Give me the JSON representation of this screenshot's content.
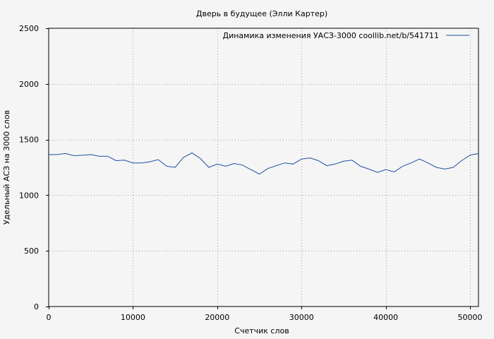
{
  "chart_data": {
    "type": "line",
    "title": "Дверь в будущее (Элли Картер)",
    "xlabel": "Счетчик слов",
    "ylabel": "Удельный АСЗ на 3000 слов",
    "xlim": [
      0,
      51000
    ],
    "ylim": [
      0,
      2500
    ],
    "xticks": [
      0,
      10000,
      20000,
      30000,
      40000,
      50000
    ],
    "yticks": [
      0,
      500,
      1000,
      1500,
      2000,
      2500
    ],
    "grid": true,
    "legend_position": "top-right",
    "series": [
      {
        "name": "Динамика изменения УАСЗ-3000  coollib.net/b/541711",
        "color": "#1f4fa0",
        "x": [
          0,
          1000,
          2000,
          3000,
          4000,
          5000,
          6000,
          7000,
          8000,
          9000,
          10000,
          11000,
          12000,
          13000,
          14000,
          15000,
          16000,
          17000,
          18000,
          19000,
          20000,
          21000,
          22000,
          23000,
          24000,
          25000,
          26000,
          27000,
          28000,
          29000,
          30000,
          31000,
          32000,
          33000,
          34000,
          35000,
          36000,
          37000,
          38000,
          39000,
          40000,
          41000,
          42000,
          43000,
          44000,
          45000,
          46000,
          47000,
          48000,
          49000,
          50000,
          51000
        ],
        "y": [
          1365,
          1365,
          1375,
          1355,
          1360,
          1365,
          1350,
          1350,
          1310,
          1315,
          1290,
          1290,
          1300,
          1320,
          1260,
          1250,
          1340,
          1380,
          1330,
          1250,
          1280,
          1260,
          1285,
          1270,
          1230,
          1190,
          1240,
          1265,
          1290,
          1280,
          1325,
          1335,
          1310,
          1265,
          1280,
          1305,
          1315,
          1260,
          1235,
          1205,
          1230,
          1210,
          1260,
          1290,
          1325,
          1290,
          1250,
          1235,
          1250,
          1310,
          1360,
          1375
        ]
      }
    ]
  }
}
